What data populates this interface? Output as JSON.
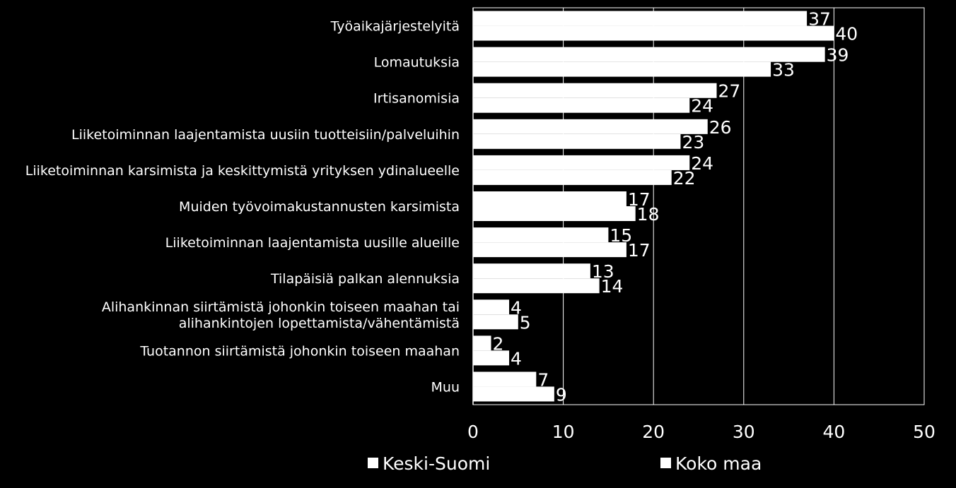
{
  "chart_data": {
    "type": "bar",
    "orientation": "horizontal",
    "categories": [
      "Työaikajärjestelyitä",
      "Lomautuksia",
      "Irtisanomisia",
      "Liiketoiminnan laajentamista uusiin tuotteisiin/palveluihin",
      "Liiketoiminnan karsimista ja keskittymistä yrityksen ydinalueelle",
      "Muiden työvoimakustannusten karsimista",
      "Liiketoiminnan laajentamista uusille alueille",
      "Tilapäisiä palkan alennuksia",
      "Alihankinnan siirtämistä johonkin toiseen maahan tai alihankintojen lopettamista/vähentämistä",
      "Tuotannon siirtämistä johonkin toiseen maahan",
      "Muu"
    ],
    "category_lines": [
      [
        "Työaikajärjestelyitä"
      ],
      [
        "Lomautuksia"
      ],
      [
        "Irtisanomisia"
      ],
      [
        "Liiketoiminnan laajentamista uusiin tuotteisiin/palveluihin"
      ],
      [
        "Liiketoiminnan karsimista ja keskittymistä yrityksen ydinalueelle"
      ],
      [
        "Muiden työvoimakustannusten karsimista"
      ],
      [
        "Liiketoiminnan laajentamista uusille alueille"
      ],
      [
        "Tilapäisiä palkan alennuksia"
      ],
      [
        "Alihankinnan siirtämistä johonkin toiseen maahan tai",
        "alihankintojen lopettamista/vähentämistä"
      ],
      [
        "Tuotannon siirtämistä johonkin toiseen maahan"
      ],
      [
        "Muu"
      ]
    ],
    "series": [
      {
        "name": "Keski-Suomi",
        "values": [
          37,
          39,
          27,
          26,
          24,
          17,
          15,
          13,
          4,
          2,
          7
        ]
      },
      {
        "name": "Koko maa",
        "values": [
          40,
          33,
          24,
          23,
          22,
          18,
          17,
          14,
          5,
          4,
          9
        ]
      }
    ],
    "xlim": [
      0,
      50
    ],
    "xticks": [
      0,
      10,
      20,
      30,
      40,
      50
    ],
    "grid": true,
    "legend_position": "bottom",
    "colors": {
      "background": "#000000",
      "bar": "#ffffff",
      "gridline": "#ffffff",
      "text": "#ffffff"
    }
  }
}
